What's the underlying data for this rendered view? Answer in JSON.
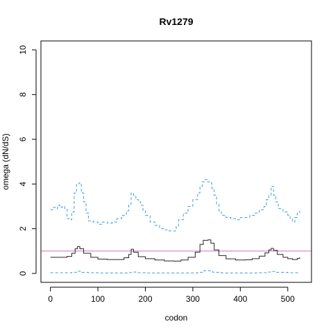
{
  "chart_data": {
    "type": "line",
    "title": "Rv1279",
    "xlabel": "codon",
    "ylabel": "omega (dN/dS)",
    "xlim": [
      -20,
      550
    ],
    "ylim": [
      -0.4,
      10.4
    ],
    "xticks": [
      0,
      100,
      200,
      300,
      400,
      500
    ],
    "yticks": [
      0,
      2,
      4,
      6,
      8,
      10
    ],
    "grid": false,
    "reference_line": {
      "y": 1.0,
      "color": "#c86fc8"
    },
    "series": [
      {
        "role": "upper",
        "color": "#3a9fd8",
        "style": "dashed",
        "points": [
          [
            0,
            2.85
          ],
          [
            5,
            2.95
          ],
          [
            10,
            2.9
          ],
          [
            15,
            3.05
          ],
          [
            20,
            2.95
          ],
          [
            25,
            3.0
          ],
          [
            30,
            2.9
          ],
          [
            35,
            2.45
          ],
          [
            40,
            2.4
          ],
          [
            45,
            2.75
          ],
          [
            50,
            3.6
          ],
          [
            55,
            4.0
          ],
          [
            60,
            4.05
          ],
          [
            65,
            3.6
          ],
          [
            70,
            3.2
          ],
          [
            75,
            2.7
          ],
          [
            80,
            2.35
          ],
          [
            90,
            2.3
          ],
          [
            100,
            2.2
          ],
          [
            110,
            2.3
          ],
          [
            120,
            2.25
          ],
          [
            130,
            2.3
          ],
          [
            140,
            2.45
          ],
          [
            150,
            2.6
          ],
          [
            160,
            2.8
          ],
          [
            165,
            3.1
          ],
          [
            170,
            3.6
          ],
          [
            175,
            3.5
          ],
          [
            180,
            3.3
          ],
          [
            185,
            3.2
          ],
          [
            190,
            3.05
          ],
          [
            195,
            2.8
          ],
          [
            200,
            2.6
          ],
          [
            210,
            2.3
          ],
          [
            220,
            2.15
          ],
          [
            230,
            2.0
          ],
          [
            240,
            1.95
          ],
          [
            250,
            1.9
          ],
          [
            260,
            1.9
          ],
          [
            265,
            2.1
          ],
          [
            270,
            2.4
          ],
          [
            280,
            2.7
          ],
          [
            290,
            3.0
          ],
          [
            300,
            3.3
          ],
          [
            310,
            3.6
          ],
          [
            315,
            3.9
          ],
          [
            320,
            4.1
          ],
          [
            325,
            4.2
          ],
          [
            330,
            4.1
          ],
          [
            335,
            4.05
          ],
          [
            340,
            3.8
          ],
          [
            345,
            3.5
          ],
          [
            350,
            3.1
          ],
          [
            355,
            2.8
          ],
          [
            360,
            2.6
          ],
          [
            370,
            2.5
          ],
          [
            380,
            2.45
          ],
          [
            390,
            2.4
          ],
          [
            400,
            2.5
          ],
          [
            410,
            2.5
          ],
          [
            420,
            2.6
          ],
          [
            430,
            2.7
          ],
          [
            440,
            2.85
          ],
          [
            450,
            3.0
          ],
          [
            455,
            3.3
          ],
          [
            460,
            3.5
          ],
          [
            465,
            3.9
          ],
          [
            470,
            3.5
          ],
          [
            475,
            3.2
          ],
          [
            480,
            2.9
          ],
          [
            490,
            2.75
          ],
          [
            500,
            2.6
          ],
          [
            505,
            2.45
          ],
          [
            510,
            2.3
          ],
          [
            515,
            2.5
          ],
          [
            520,
            2.7
          ],
          [
            525,
            2.8
          ]
        ]
      },
      {
        "role": "mean",
        "color": "#222222",
        "style": "solid",
        "points": [
          [
            0,
            0.72
          ],
          [
            20,
            0.72
          ],
          [
            35,
            0.76
          ],
          [
            45,
            0.9
          ],
          [
            52,
            1.1
          ],
          [
            57,
            1.2
          ],
          [
            62,
            1.1
          ],
          [
            70,
            0.9
          ],
          [
            85,
            0.72
          ],
          [
            100,
            0.64
          ],
          [
            120,
            0.62
          ],
          [
            140,
            0.62
          ],
          [
            155,
            0.7
          ],
          [
            165,
            0.85
          ],
          [
            170,
            1.08
          ],
          [
            175,
            0.95
          ],
          [
            185,
            0.75
          ],
          [
            200,
            0.66
          ],
          [
            220,
            0.6
          ],
          [
            240,
            0.56
          ],
          [
            260,
            0.55
          ],
          [
            275,
            0.6
          ],
          [
            290,
            0.72
          ],
          [
            305,
            0.95
          ],
          [
            315,
            1.3
          ],
          [
            322,
            1.48
          ],
          [
            332,
            1.5
          ],
          [
            338,
            1.35
          ],
          [
            345,
            1.05
          ],
          [
            355,
            0.8
          ],
          [
            370,
            0.65
          ],
          [
            390,
            0.6
          ],
          [
            410,
            0.61
          ],
          [
            425,
            0.66
          ],
          [
            440,
            0.77
          ],
          [
            452,
            0.92
          ],
          [
            460,
            1.05
          ],
          [
            465,
            1.12
          ],
          [
            470,
            1.03
          ],
          [
            478,
            0.85
          ],
          [
            490,
            0.72
          ],
          [
            500,
            0.66
          ],
          [
            510,
            0.62
          ],
          [
            520,
            0.67
          ],
          [
            525,
            0.72
          ]
        ]
      },
      {
        "role": "lower",
        "color": "#3a9fd8",
        "style": "dashed",
        "points": [
          [
            0,
            0.03
          ],
          [
            30,
            0.03
          ],
          [
            45,
            0.05
          ],
          [
            55,
            0.1
          ],
          [
            65,
            0.05
          ],
          [
            80,
            0.03
          ],
          [
            100,
            0.02
          ],
          [
            150,
            0.02
          ],
          [
            165,
            0.04
          ],
          [
            172,
            0.06
          ],
          [
            180,
            0.03
          ],
          [
            200,
            0.02
          ],
          [
            250,
            0.02
          ],
          [
            290,
            0.02
          ],
          [
            310,
            0.05
          ],
          [
            322,
            0.12
          ],
          [
            332,
            0.12
          ],
          [
            342,
            0.05
          ],
          [
            360,
            0.02
          ],
          [
            400,
            0.02
          ],
          [
            440,
            0.03
          ],
          [
            455,
            0.06
          ],
          [
            465,
            0.09
          ],
          [
            475,
            0.05
          ],
          [
            500,
            0.03
          ],
          [
            525,
            0.03
          ]
        ]
      }
    ]
  }
}
